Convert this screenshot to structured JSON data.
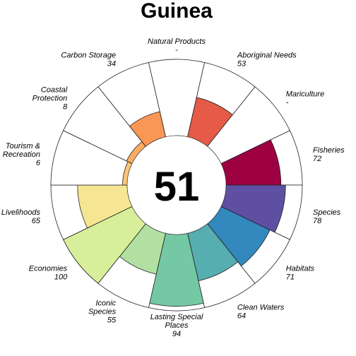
{
  "chart_data": {
    "type": "flower",
    "title": "Guinea",
    "overall_score": "51",
    "score_range": [
      0,
      100
    ],
    "petals": [
      {
        "name": "Natural Products",
        "label_lines": [
          "Natural Products"
        ],
        "score": null,
        "score_label": "-",
        "color": "#cccccc"
      },
      {
        "name": "Aboriginal Needs",
        "label_lines": [
          "Aboriginal Needs"
        ],
        "score": 53,
        "score_label": "53",
        "color": "#e65a48"
      },
      {
        "name": "Mariculture",
        "label_lines": [
          "Mariculture"
        ],
        "score": null,
        "score_label": "-",
        "color": "#cccccc"
      },
      {
        "name": "Fisheries",
        "label_lines": [
          "Fisheries"
        ],
        "score": 72,
        "score_label": "72",
        "color": "#9e0142"
      },
      {
        "name": "Species",
        "label_lines": [
          "Species"
        ],
        "score": 78,
        "score_label": "78",
        "color": "#5e4fa2"
      },
      {
        "name": "Habitats",
        "label_lines": [
          "Habitats"
        ],
        "score": 71,
        "score_label": "71",
        "color": "#3388bd"
      },
      {
        "name": "Clean Waters",
        "label_lines": [
          "Clean Waters"
        ],
        "score": 64,
        "score_label": "64",
        "color": "#56aeb0"
      },
      {
        "name": "Lasting Special Places",
        "label_lines": [
          "Lasting Special",
          "Places"
        ],
        "score": 94,
        "score_label": "94",
        "color": "#74c8a4"
      },
      {
        "name": "Iconic Species",
        "label_lines": [
          "Iconic",
          "Species"
        ],
        "score": 55,
        "score_label": "55",
        "color": "#b2e0a2"
      },
      {
        "name": "Economies",
        "label_lines": [
          "Economies"
        ],
        "score": 100,
        "score_label": "100",
        "color": "#d7ef9b"
      },
      {
        "name": "Livelihoods",
        "label_lines": [
          "Livelihoods"
        ],
        "score": 65,
        "score_label": "65",
        "color": "#f6e593"
      },
      {
        "name": "Tourism & Recreation",
        "label_lines": [
          "Tourism &",
          "Recreation"
        ],
        "score": 6,
        "score_label": "6",
        "color": "#fdc574"
      },
      {
        "name": "Coastal Protection",
        "label_lines": [
          "Coastal",
          "Protection"
        ],
        "score": 8,
        "score_label": "8",
        "color": "#fdac5f"
      },
      {
        "name": "Carbon Storage",
        "label_lines": [
          "Carbon Storage"
        ],
        "score": 34,
        "score_label": "34",
        "color": "#fa9756"
      }
    ]
  }
}
